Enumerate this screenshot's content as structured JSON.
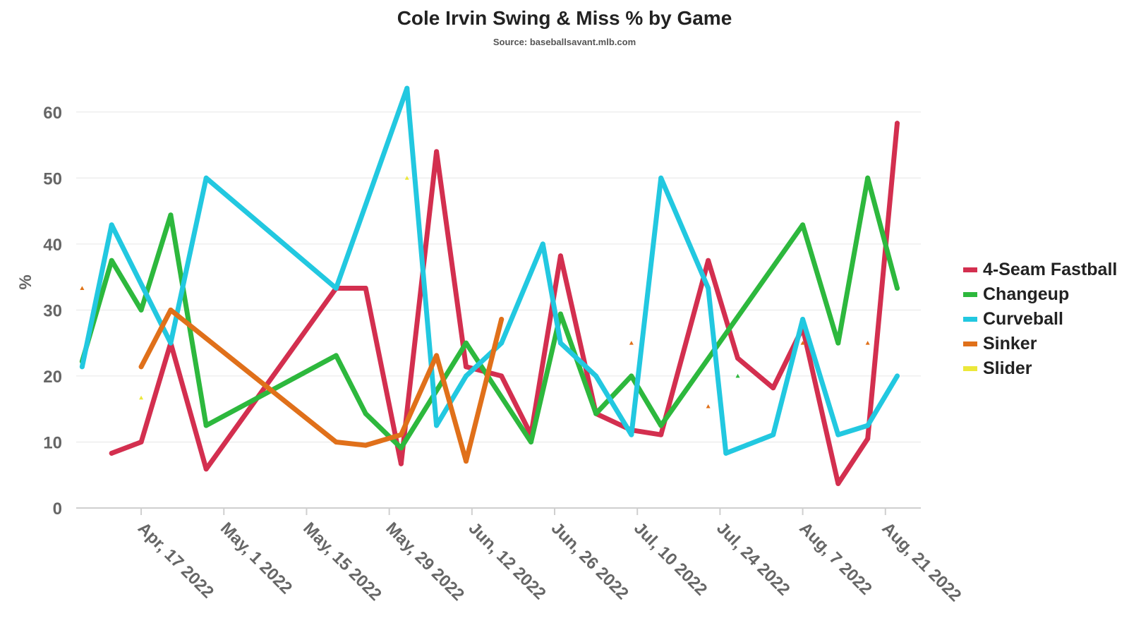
{
  "chart_data": {
    "type": "line",
    "title": "Cole Irvin Swing & Miss % by Game",
    "subtitle": "Source: baseballsavant.mlb.com",
    "ylabel": "%",
    "xlabel": "",
    "ylim": [
      0,
      65
    ],
    "yticks": [
      0,
      10,
      20,
      30,
      40,
      50,
      60
    ],
    "x_range": [
      "2022-04-06",
      "2022-08-27"
    ],
    "xticks": [
      {
        "date": "2022-04-17",
        "label": "Apr, 17 2022"
      },
      {
        "date": "2022-05-01",
        "label": "May, 1 2022"
      },
      {
        "date": "2022-05-15",
        "label": "May, 15 2022"
      },
      {
        "date": "2022-05-29",
        "label": "May, 29 2022"
      },
      {
        "date": "2022-06-12",
        "label": "Jun, 12 2022"
      },
      {
        "date": "2022-06-26",
        "label": "Jun, 26 2022"
      },
      {
        "date": "2022-07-10",
        "label": "Jul, 10 2022"
      },
      {
        "date": "2022-07-24",
        "label": "Jul, 24 2022"
      },
      {
        "date": "2022-08-07",
        "label": "Aug, 7 2022"
      },
      {
        "date": "2022-08-21",
        "label": "Aug, 21 2022"
      }
    ],
    "grid": true,
    "legend_position": "right",
    "series": [
      {
        "name": "4-Seam Fastball",
        "color": "#d32f4f",
        "points": [
          [
            "2022-04-12",
            8.3
          ],
          [
            "2022-04-17",
            10
          ],
          [
            "2022-04-22",
            25
          ],
          [
            "2022-04-28",
            5.9
          ],
          [
            "2022-05-20",
            33.3
          ],
          [
            "2022-05-25",
            33.3
          ],
          [
            "2022-05-31",
            6.7
          ],
          [
            "2022-06-06",
            54
          ],
          [
            "2022-06-11",
            21.4
          ],
          [
            "2022-06-17",
            20
          ],
          [
            "2022-06-22",
            11.1
          ],
          [
            "2022-06-27",
            38.2
          ],
          [
            "2022-07-03",
            14.3
          ],
          [
            "2022-07-09",
            11.8
          ],
          [
            "2022-07-14",
            11.1
          ],
          [
            "2022-07-22",
            37.5
          ],
          [
            "2022-07-27",
            22.7
          ],
          [
            "2022-08-02",
            18.2
          ],
          [
            "2022-08-07",
            27.3
          ],
          [
            "2022-08-13",
            3.7
          ],
          [
            "2022-08-18",
            10.5
          ],
          [
            "2022-08-23",
            58.3
          ]
        ]
      },
      {
        "name": "Changeup",
        "color": "#2db83d",
        "points": [
          [
            "2022-04-07",
            22.2
          ],
          [
            "2022-04-12",
            37.5
          ],
          [
            "2022-04-17",
            30
          ],
          [
            "2022-04-22",
            44.4
          ],
          [
            "2022-04-28",
            12.5
          ],
          [
            "2022-05-20",
            23.1
          ],
          [
            "2022-05-25",
            14.3
          ],
          [
            "2022-05-31",
            9.1
          ],
          [
            "2022-06-11",
            25
          ],
          [
            "2022-06-22",
            10
          ],
          [
            "2022-06-27",
            29.4
          ],
          [
            "2022-07-03",
            14.3
          ],
          [
            "2022-07-09",
            20
          ],
          [
            "2022-07-14",
            12.5
          ],
          [
            "2022-08-07",
            42.9
          ],
          [
            "2022-08-13",
            25
          ],
          [
            "2022-08-18",
            50
          ],
          [
            "2022-08-23",
            33.3
          ]
        ]
      },
      {
        "name": "Curveball",
        "color": "#22c8e0",
        "points": [
          [
            "2022-04-07",
            21.4
          ],
          [
            "2022-04-12",
            42.9
          ],
          [
            "2022-04-22",
            25
          ],
          [
            "2022-04-28",
            50
          ],
          [
            "2022-05-20",
            33.3
          ],
          [
            "2022-06-01",
            63.6
          ],
          [
            "2022-06-06",
            12.5
          ],
          [
            "2022-06-11",
            20
          ],
          [
            "2022-06-17",
            25
          ],
          [
            "2022-06-24",
            40
          ],
          [
            "2022-06-27",
            25
          ],
          [
            "2022-07-03",
            20
          ],
          [
            "2022-07-09",
            11.1
          ],
          [
            "2022-07-14",
            50
          ],
          [
            "2022-07-22",
            33.3
          ],
          [
            "2022-07-25",
            8.3
          ],
          [
            "2022-08-02",
            11.1
          ],
          [
            "2022-08-07",
            28.6
          ],
          [
            "2022-08-13",
            11.1
          ],
          [
            "2022-08-18",
            12.5
          ],
          [
            "2022-08-23",
            20
          ]
        ]
      },
      {
        "name": "Sinker",
        "color": "#e0701a",
        "points": [
          [
            "2022-04-17",
            21.4
          ],
          [
            "2022-04-22",
            30
          ],
          [
            "2022-05-20",
            10
          ],
          [
            "2022-05-25",
            9.5
          ],
          [
            "2022-05-31",
            11.1
          ],
          [
            "2022-06-06",
            23.1
          ],
          [
            "2022-06-11",
            7.1
          ],
          [
            "2022-06-17",
            28.6
          ]
        ]
      },
      {
        "name": "Slider",
        "color": "#ece83a",
        "points": []
      }
    ],
    "single_point_markers": [
      {
        "series": "Slider",
        "date": "2022-04-07",
        "value": 33.3
      },
      {
        "series": "Slider",
        "date": "2022-04-17",
        "value": 16.7
      },
      {
        "series": "Slider",
        "date": "2022-06-01",
        "value": 50
      },
      {
        "series": "Sinker",
        "date": "2022-04-07",
        "value": 33.3
      },
      {
        "series": "Sinker",
        "date": "2022-07-09",
        "value": 25
      },
      {
        "series": "Sinker",
        "date": "2022-07-22",
        "value": 15.4
      },
      {
        "series": "Sinker",
        "date": "2022-08-07",
        "value": 25
      },
      {
        "series": "Sinker",
        "date": "2022-08-18",
        "value": 25
      },
      {
        "series": "Changeup",
        "date": "2022-07-27",
        "value": 20
      }
    ]
  }
}
